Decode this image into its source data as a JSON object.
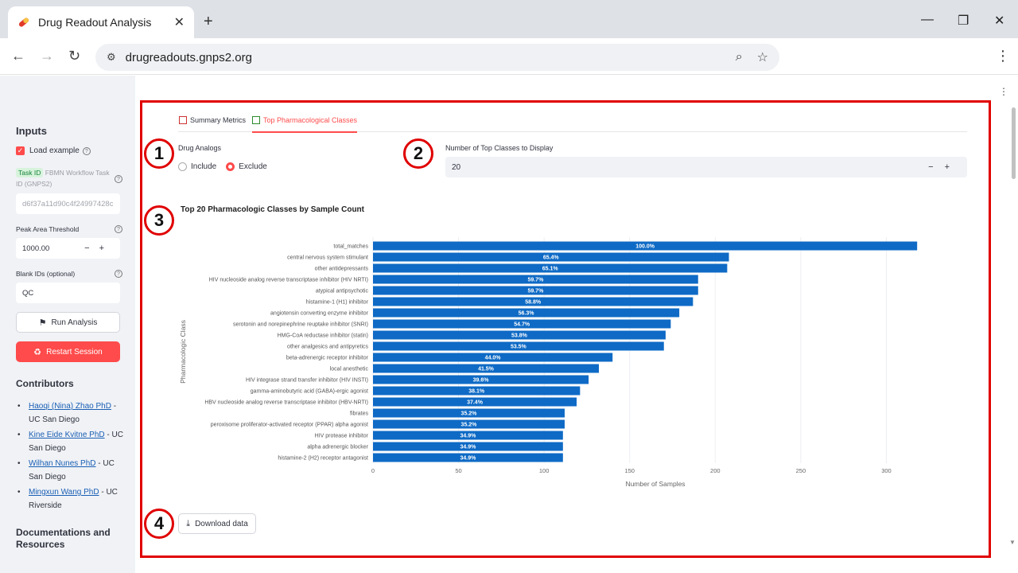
{
  "browser": {
    "tab_title": "Drug Readout Analysis",
    "url": "drugreadouts.gnps2.org"
  },
  "sidebar": {
    "heading": "Inputs",
    "load_example_label": "Load example",
    "task_badge": "Task ID",
    "task_label": "FBMN Workflow Task ID (GNPS2)",
    "task_placeholder": "d6f37a11d90c4f24997428c",
    "peak_label": "Peak Area Threshold",
    "peak_value": "1000.00",
    "blank_label": "Blank IDs (optional)",
    "blank_value": "QC",
    "run_label": "Run Analysis",
    "restart_label": "Restart Session",
    "contributors_heading": "Contributors",
    "contributors": [
      {
        "name": "Haoqi (Nina) Zhao PhD",
        "affil": " - UC San Diego"
      },
      {
        "name": "Kine Eide Kvitne PhD",
        "affil": " - UC San Diego"
      },
      {
        "name": "Wilhan Nunes PhD",
        "affil": " - UC San Diego"
      },
      {
        "name": "Mingxun Wang PhD",
        "affil": " - UC Riverside"
      }
    ],
    "docs_heading": "Documentations and Resources"
  },
  "main": {
    "tabs": [
      {
        "label": "Summary Metrics",
        "active": false
      },
      {
        "label": "Top Pharmacological Classes",
        "active": true
      }
    ],
    "drug_analogs_label": "Drug Analogs",
    "radio_include": "Include",
    "radio_exclude": "Exclude",
    "selected_radio": "Exclude",
    "top_classes_label": "Number of Top Classes to Display",
    "top_classes_value": "20",
    "download_label": "Download data",
    "annotations": [
      "1",
      "2",
      "3",
      "4"
    ]
  },
  "chart_data": {
    "type": "bar",
    "orientation": "horizontal",
    "title": "Top 20 Pharmacologic Classes by Sample Count",
    "xlabel": "Number of Samples",
    "ylabel": "Pharmacologic Class",
    "xlim": [
      0,
      330
    ],
    "xticks": [
      0,
      50,
      100,
      150,
      200,
      250,
      300
    ],
    "bar_color": "#0e6ac5",
    "categories": [
      "total_matches",
      "central nervous system stimulant",
      "other antidepressants",
      "HIV nucleoside analog reverse transcriptase inhibitor (HIV NRTI)",
      "atypical antipsychotic",
      "histamine-1 (H1) inhibitor",
      "angiotensin converting enzyme inhibitor",
      "serotonin and norepinephrine reuptake inhibitor (SNRI)",
      "HMG-CoA reductase inhibitor (statin)",
      "other analgesics and antipyretics",
      "beta-adrenergic receptor inhibitor",
      "local anesthetic",
      "HIV integrase strand transfer inhibitor (HIV INSTI)",
      "gamma-aminobutyric acid (GABA)-ergic agonist",
      "HBV nucleoside analog reverse transcriptase inhibitor (HBV-NRTI)",
      "fibrates",
      "peroxisome proliferator-activated receptor (PPAR) alpha agonist",
      "HIV protease inhibitor",
      "alpha adrenergic blocker",
      "histamine-2 (H2) receptor antagonist"
    ],
    "values": [
      318,
      208,
      207,
      190,
      190,
      187,
      179,
      174,
      171,
      170,
      140,
      132,
      126,
      121,
      119,
      112,
      112,
      111,
      111,
      111
    ],
    "labels": [
      "100.0%",
      "65.4%",
      "65.1%",
      "59.7%",
      "59.7%",
      "58.8%",
      "56.3%",
      "54.7%",
      "53.8%",
      "53.5%",
      "44.0%",
      "41.5%",
      "39.6%",
      "38.1%",
      "37.4%",
      "35.2%",
      "35.2%",
      "34.9%",
      "34.9%",
      "34.9%"
    ]
  }
}
